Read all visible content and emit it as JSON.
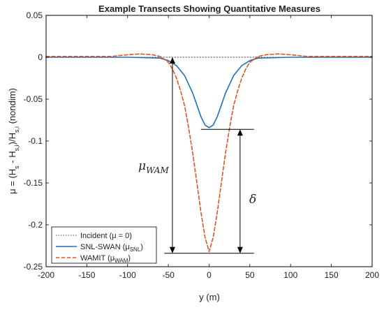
{
  "chart_data": {
    "type": "line",
    "title": "Example Transects Showing Quantitative Measures",
    "xlabel": "y (m)",
    "ylabel_parts": {
      "mu": "μ",
      "eq_open": " = (H",
      "sub_s": "s",
      "minus": " - H",
      "sub_si": "s,i",
      "close": ")/H",
      "sub_si2": "s,i",
      "unit": " (nondim)"
    },
    "xlim": [
      -200,
      200
    ],
    "ylim": [
      -0.25,
      0.05
    ],
    "x_ticks": [
      -200,
      -150,
      -100,
      -50,
      0,
      50,
      100,
      150,
      200
    ],
    "x_tick_labels": [
      "-200",
      "-150",
      "-100",
      "-50",
      "0",
      "50",
      "100",
      "150",
      "200"
    ],
    "y_ticks": [
      0.05,
      0,
      -0.05,
      -0.1,
      -0.15,
      -0.2,
      -0.25
    ],
    "y_tick_labels": [
      "0.05",
      "0",
      "-0.05",
      "-0.1",
      "-0.15",
      "-0.2",
      "-0.25"
    ],
    "grid": false,
    "legend_position": "bottom-left",
    "series": [
      {
        "key": "incident",
        "legend_main": "Incident (",
        "legend_sym": "μ",
        "legend_sub": "",
        "legend_tail": " = 0)",
        "color": "#444444",
        "style": "dotted",
        "x": [
          -200,
          200
        ],
        "y": [
          0,
          0
        ]
      },
      {
        "key": "swan",
        "legend_main": "SNL-SWAN (",
        "legend_sym": "μ",
        "legend_sub": "SNL",
        "legend_tail": ")",
        "color": "#1f6fbd",
        "style": "solid",
        "x": [
          -200,
          -100,
          -60,
          -50,
          -40,
          -30,
          -20,
          -10,
          -5,
          0,
          5,
          10,
          20,
          30,
          40,
          50,
          60,
          100,
          200
        ],
        "y": [
          0,
          0,
          -0.001,
          -0.004,
          -0.01,
          -0.022,
          -0.043,
          -0.071,
          -0.081,
          -0.084,
          -0.081,
          -0.071,
          -0.043,
          -0.022,
          -0.01,
          -0.004,
          -0.001,
          0,
          0
        ]
      },
      {
        "key": "wamit",
        "legend_main": "WAMIT (",
        "legend_sym": "μ",
        "legend_sub": "WAM",
        "legend_tail": ")",
        "color": "#e0541f",
        "style": "dashed",
        "x": [
          -200,
          -150,
          -120,
          -100,
          -85,
          -70,
          -60,
          -50,
          -45,
          -40,
          -35,
          -30,
          -25,
          -20,
          -15,
          -10,
          -5,
          0,
          5,
          10,
          15,
          20,
          25,
          30,
          35,
          40,
          45,
          50,
          60,
          70,
          85,
          100,
          120,
          150,
          200
        ],
        "y": [
          0.001,
          0.001,
          0.001,
          0.003,
          0.004,
          0.003,
          0.001,
          -0.006,
          -0.014,
          -0.025,
          -0.04,
          -0.058,
          -0.085,
          -0.115,
          -0.15,
          -0.185,
          -0.215,
          -0.232,
          -0.215,
          -0.185,
          -0.15,
          -0.115,
          -0.085,
          -0.058,
          -0.04,
          -0.025,
          -0.014,
          -0.006,
          0.001,
          0.003,
          0.004,
          0.003,
          0.001,
          0.001,
          0.001
        ]
      }
    ],
    "annotations": {
      "mu_wam": {
        "symbol": "μ",
        "sub": "WAM",
        "x": -45,
        "y_from": 0,
        "y_to": -0.234
      },
      "delta": {
        "symbol": "δ",
        "x": 38,
        "y_from": -0.086,
        "y_to": -0.234
      },
      "ref_line_top": {
        "x_from": -10,
        "x_to": 55,
        "y": -0.086
      },
      "ref_line_bottom": {
        "x_from": -55,
        "x_to": 55,
        "y": -0.234
      }
    }
  }
}
